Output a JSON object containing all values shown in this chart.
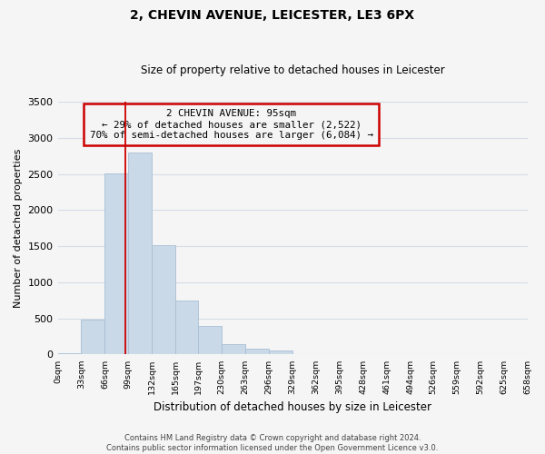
{
  "title": "2, CHEVIN AVENUE, LEICESTER, LE3 6PX",
  "subtitle": "Size of property relative to detached houses in Leicester",
  "xlabel": "Distribution of detached houses by size in Leicester",
  "ylabel": "Number of detached properties",
  "bin_edges": [
    0,
    33,
    66,
    99,
    132,
    165,
    197,
    230,
    263,
    296,
    329,
    362,
    395,
    428,
    461,
    494,
    526,
    559,
    592,
    625,
    658
  ],
  "bar_heights": [
    15,
    480,
    2510,
    2800,
    1510,
    750,
    390,
    150,
    75,
    50,
    0,
    0,
    0,
    0,
    0,
    0,
    0,
    0,
    0,
    0
  ],
  "bar_color": "#c9d9e8",
  "bar_edge_color": "#a8bfd4",
  "grid_color": "#d4dde6",
  "property_line_x": 95,
  "property_line_color": "#cc0000",
  "annotation_title": "2 CHEVIN AVENUE: 95sqm",
  "annotation_line1": "← 29% of detached houses are smaller (2,522)",
  "annotation_line2": "70% of semi-detached houses are larger (6,084) →",
  "annotation_box_color": "#cc0000",
  "ylim": [
    0,
    3500
  ],
  "yticks": [
    0,
    500,
    1000,
    1500,
    2000,
    2500,
    3000,
    3500
  ],
  "tick_labels": [
    "0sqm",
    "33sqm",
    "66sqm",
    "99sqm",
    "132sqm",
    "165sqm",
    "197sqm",
    "230sqm",
    "263sqm",
    "296sqm",
    "329sqm",
    "362sqm",
    "395sqm",
    "428sqm",
    "461sqm",
    "494sqm",
    "526sqm",
    "559sqm",
    "592sqm",
    "625sqm",
    "658sqm"
  ],
  "footer_line1": "Contains HM Land Registry data © Crown copyright and database right 2024.",
  "footer_line2": "Contains public sector information licensed under the Open Government Licence v3.0.",
  "bg_color": "#f5f5f5"
}
